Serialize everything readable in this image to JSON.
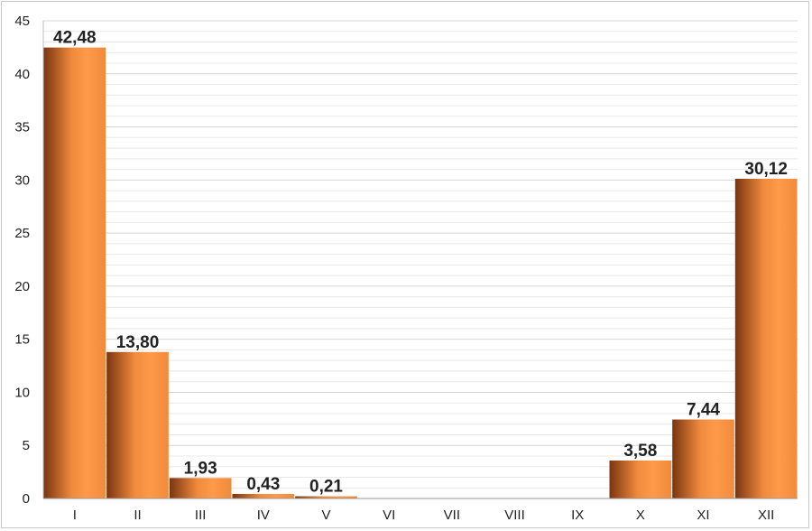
{
  "chart_data": {
    "type": "bar",
    "title": "",
    "xlabel": "",
    "ylabel": "",
    "categories": [
      "I",
      "II",
      "III",
      "IV",
      "V",
      "VI",
      "VII",
      "VIII",
      "IX",
      "X",
      "XI",
      "XII"
    ],
    "values": [
      42.48,
      13.8,
      1.93,
      0.43,
      0.21,
      0,
      0,
      0,
      0,
      3.58,
      7.44,
      30.12
    ],
    "data_labels": [
      "42,48",
      "13,80",
      "1,93",
      "0,43",
      "0,21",
      "",
      "",
      "",
      "",
      "3,58",
      "7,44",
      "30,12"
    ],
    "ylim": [
      0,
      45
    ],
    "yticks": [
      0,
      5,
      10,
      15,
      20,
      25,
      30,
      35,
      40,
      45
    ],
    "minor_gridline_step": 1,
    "grid": true,
    "legend": "none",
    "bar_color": "#f08a3c",
    "bar_color_dark": "#7a3510",
    "bar_color_light": "#ff9a4a"
  }
}
